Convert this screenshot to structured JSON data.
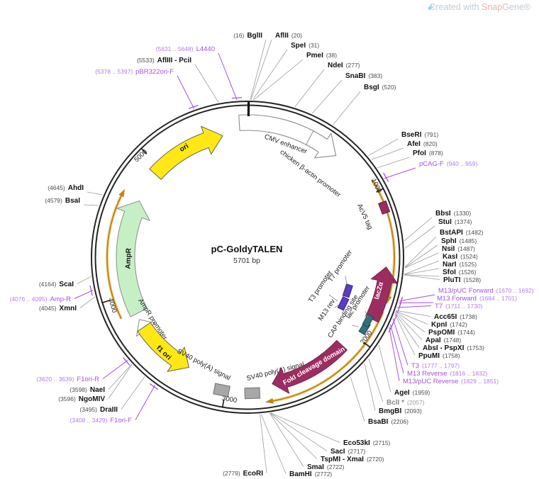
{
  "header": {
    "prefix": "Created with ",
    "snap": "Snap",
    "gene": "Gene®"
  },
  "plasmid": {
    "name": "pC-GoldyTALEN",
    "size_label": "5701 bp",
    "length_bp": 5701
  },
  "colors": {
    "ring": "#262626",
    "enzyme_line": "#9c9c9c",
    "enzyme_name": "#111111",
    "enzyme_pos": "#4d4d4d",
    "dim_enzyme": "#8a8a8a",
    "primer": "#a450e6",
    "gold": "#c08415",
    "gold_halo": "#f2dfae",
    "maroon": "#9c2d61",
    "yellow": "#ffe816",
    "green": "#c6efc6",
    "teal": "#33707e",
    "purple_box": "#5b3cc4",
    "gray_box": "#a8a8a8",
    "white": "#ffffff"
  },
  "ticks": [
    {
      "label": "1000",
      "bp": 1000
    },
    {
      "label": "2000",
      "bp": 2000
    },
    {
      "label": "3000",
      "bp": 3000
    },
    {
      "label": "4000",
      "bp": 4000
    },
    {
      "label": "5000",
      "bp": 5000
    }
  ],
  "sites": [
    {
      "name": "BglII",
      "pos": "(16)",
      "bp": 16,
      "kind": "enzyme",
      "fmt": "pos-first"
    },
    {
      "name": "AflII",
      "pos": "(20)",
      "bp": 20,
      "kind": "enzyme",
      "fmt": "name-first"
    },
    {
      "name": "SpeI",
      "pos": "(31)",
      "bp": 31,
      "kind": "enzyme",
      "fmt": "name-first"
    },
    {
      "name": "PmeI",
      "pos": "(38)",
      "bp": 38,
      "kind": "enzyme",
      "fmt": "name-first"
    },
    {
      "name": "NdeI",
      "pos": "(277)",
      "bp": 277,
      "kind": "enzyme",
      "fmt": "name-first"
    },
    {
      "name": "SnaBI",
      "pos": "(383)",
      "bp": 383,
      "kind": "enzyme",
      "fmt": "name-first"
    },
    {
      "name": "BsgI",
      "pos": "(520)",
      "bp": 520,
      "kind": "enzyme",
      "fmt": "name-first"
    },
    {
      "name": "BseRI",
      "pos": "(791)",
      "bp": 791,
      "kind": "enzyme",
      "fmt": "name-first"
    },
    {
      "name": "AfeI",
      "pos": "(820)",
      "bp": 820,
      "kind": "enzyme",
      "fmt": "name-first"
    },
    {
      "name": "PfoI",
      "pos": "(878)",
      "bp": 878,
      "kind": "enzyme",
      "fmt": "name-first"
    },
    {
      "name": "pCAG-F",
      "pos": "(940 .. 959)",
      "bp": 950,
      "kind": "primer",
      "fmt": "name-first"
    },
    {
      "name": "BbsI",
      "pos": "(1330)",
      "bp": 1330,
      "kind": "enzyme",
      "fmt": "name-first"
    },
    {
      "name": "StuI",
      "pos": "(1374)",
      "bp": 1374,
      "kind": "enzyme",
      "fmt": "name-first"
    },
    {
      "name": "BstAPI",
      "pos": "(1482)",
      "bp": 1482,
      "kind": "enzyme",
      "fmt": "name-first"
    },
    {
      "name": "SphI",
      "pos": "(1485)",
      "bp": 1485,
      "kind": "enzyme",
      "fmt": "name-first"
    },
    {
      "name": "NsiI",
      "pos": "(1487)",
      "bp": 1487,
      "kind": "enzyme",
      "fmt": "name-first"
    },
    {
      "name": "KasI",
      "pos": "(1524)",
      "bp": 1524,
      "kind": "enzyme",
      "fmt": "name-first"
    },
    {
      "name": "NarI",
      "pos": "(1525)",
      "bp": 1525,
      "kind": "enzyme",
      "fmt": "name-first"
    },
    {
      "name": "SfoI",
      "pos": "(1526)",
      "bp": 1526,
      "kind": "enzyme",
      "fmt": "name-first"
    },
    {
      "name": "PluTI",
      "pos": "(1528)",
      "bp": 1528,
      "kind": "enzyme",
      "fmt": "name-first"
    },
    {
      "name": "M13/pUC Forward",
      "pos": "(1670 .. 1692)",
      "bp": 1681,
      "kind": "primer",
      "fmt": "name-first"
    },
    {
      "name": "M13 Forward",
      "pos": "(1684 .. 1701)",
      "bp": 1692,
      "kind": "primer",
      "fmt": "name-first"
    },
    {
      "name": "T7",
      "pos": "(1711 .. 1730)",
      "bp": 1720,
      "kind": "primer",
      "fmt": "name-first"
    },
    {
      "name": "Acc65I",
      "pos": "(1738)",
      "bp": 1738,
      "kind": "enzyme",
      "fmt": "name-first"
    },
    {
      "name": "KpnI",
      "pos": "(1742)",
      "bp": 1742,
      "kind": "enzyme",
      "fmt": "name-first"
    },
    {
      "name": "PspOMI",
      "pos": "(1744)",
      "bp": 1744,
      "kind": "enzyme",
      "fmt": "name-first"
    },
    {
      "name": "ApaI",
      "pos": "(1748)",
      "bp": 1748,
      "kind": "enzyme",
      "fmt": "name-first"
    },
    {
      "name": "AbsI - PspXI",
      "pos": "(1753)",
      "bp": 1753,
      "kind": "enzyme",
      "fmt": "name-first"
    },
    {
      "name": "PpuMI",
      "pos": "(1758)",
      "bp": 1758,
      "kind": "enzyme",
      "fmt": "name-first"
    },
    {
      "name": "T3",
      "pos": "(1777 .. 1797)",
      "bp": 1787,
      "kind": "primer",
      "fmt": "name-first"
    },
    {
      "name": "M13 Reverse",
      "pos": "(1816 .. 1832)",
      "bp": 1824,
      "kind": "primer",
      "fmt": "name-first"
    },
    {
      "name": "M13/pUC Reverse",
      "pos": "(1829 .. 1851)",
      "bp": 1840,
      "kind": "primer",
      "fmt": "name-first"
    },
    {
      "name": "AgeI",
      "pos": "(1959)",
      "bp": 1959,
      "kind": "enzyme",
      "fmt": "name-first"
    },
    {
      "name": "BclI *",
      "pos": "(2057)",
      "bp": 2057,
      "kind": "enzyme-dim",
      "fmt": "name-first"
    },
    {
      "name": "BmgBI",
      "pos": "(2093)",
      "bp": 2093,
      "kind": "enzyme",
      "fmt": "name-first"
    },
    {
      "name": "BsaBI",
      "pos": "(2206)",
      "bp": 2206,
      "kind": "enzyme",
      "fmt": "name-first"
    },
    {
      "name": "Eco53kI",
      "pos": "(2715)",
      "bp": 2715,
      "kind": "enzyme",
      "fmt": "name-first"
    },
    {
      "name": "SacI",
      "pos": "(2717)",
      "bp": 2717,
      "kind": "enzyme",
      "fmt": "name-first"
    },
    {
      "name": "TspMI - XmaI",
      "pos": "(2720)",
      "bp": 2720,
      "kind": "enzyme",
      "fmt": "name-first"
    },
    {
      "name": "SmaI",
      "pos": "(2722)",
      "bp": 2722,
      "kind": "enzyme",
      "fmt": "name-first"
    },
    {
      "name": "BamHI",
      "pos": "(2772)",
      "bp": 2772,
      "kind": "enzyme",
      "fmt": "name-first"
    },
    {
      "name": "EcoRI",
      "pos": "(2779)",
      "bp": 2779,
      "kind": "enzyme",
      "fmt": "pos-first"
    },
    {
      "name": "F1ori-F",
      "pos": "(3408 .. 3429)",
      "bp": 3418,
      "kind": "primer",
      "fmt": "pos-first"
    },
    {
      "name": "DraIII",
      "pos": "(3495)",
      "bp": 3495,
      "kind": "enzyme",
      "fmt": "pos-first"
    },
    {
      "name": "NgoMIV",
      "pos": "(3596)",
      "bp": 3596,
      "kind": "enzyme",
      "fmt": "pos-first"
    },
    {
      "name": "NaeI",
      "pos": "(3598)",
      "bp": 3598,
      "kind": "enzyme",
      "fmt": "pos-first"
    },
    {
      "name": "F1ori-R",
      "pos": "(3620 .. 3639)",
      "bp": 3630,
      "kind": "primer",
      "fmt": "pos-first"
    },
    {
      "name": "XmnI",
      "pos": "(4045)",
      "bp": 4045,
      "kind": "enzyme",
      "fmt": "pos-first"
    },
    {
      "name": "Amp-R",
      "pos": "(4076 .. 4095)",
      "bp": 4085,
      "kind": "primer",
      "fmt": "pos-first"
    },
    {
      "name": "ScaI",
      "pos": "(4164)",
      "bp": 4164,
      "kind": "enzyme",
      "fmt": "pos-first"
    },
    {
      "name": "BsaI",
      "pos": "(4579)",
      "bp": 4579,
      "kind": "enzyme",
      "fmt": "pos-first"
    },
    {
      "name": "AhdI",
      "pos": "(4645)",
      "bp": 4645,
      "kind": "enzyme",
      "fmt": "pos-first"
    },
    {
      "name": "pBR322ori-F",
      "pos": "(5378 .. 5397)",
      "bp": 5388,
      "kind": "primer",
      "fmt": "pos-first"
    },
    {
      "name": "AflIII - PciI",
      "pos": "(5533)",
      "bp": 5533,
      "kind": "enzyme",
      "fmt": "pos-first"
    },
    {
      "name": "L4440",
      "pos": "(5631 .. 5648)",
      "bp": 5640,
      "kind": "primer",
      "fmt": "pos-first"
    }
  ],
  "features": [
    {
      "id": "cmv_arrow",
      "labels": [
        "CMV enhancer",
        "chicken β-actin promoter"
      ],
      "kind": "promoter-arrow",
      "color": "#ffffff"
    },
    {
      "id": "ori",
      "label": "ori",
      "kind": "origin",
      "color": "#ffe816"
    },
    {
      "id": "ampr",
      "label": "AmpR",
      "kind": "cds",
      "color": "#c6efc6"
    },
    {
      "id": "ampr_prom",
      "label": "AmpR promoter",
      "kind": "promoter",
      "color": "#ffffff"
    },
    {
      "id": "f1ori",
      "label": "f1 ori",
      "kind": "origin",
      "color": "#ffe816"
    },
    {
      "id": "sv40_a",
      "label": "SV40 poly(A) signal",
      "kind": "polyA-signal",
      "color": "#a8a8a8"
    },
    {
      "id": "sv40_b",
      "label": "SV40 poly(A) signal",
      "kind": "polyA-signal",
      "color": "#a8a8a8"
    },
    {
      "id": "foki",
      "label": "FokI cleavage domain",
      "kind": "cds",
      "color": "#9c2d61"
    },
    {
      "id": "lacz",
      "label": "lacZα",
      "kind": "cds",
      "color": "#9c2d61"
    },
    {
      "id": "acv5",
      "label": "AcV5 tag",
      "kind": "tag",
      "color": "#9c2d61"
    },
    {
      "id": "t7prom",
      "label": "T7 promoter",
      "kind": "promoter",
      "color": "#5b3cc4"
    },
    {
      "id": "t3prom",
      "label": "T3 promoter",
      "kind": "promoter",
      "color": "#5b3cc4"
    },
    {
      "id": "m13rev",
      "label": "M13 rev",
      "kind": "primer-site",
      "color": "#5b3cc4"
    },
    {
      "id": "cap",
      "label": "CAP binding site",
      "kind": "protein-bind",
      "color": "#33707e"
    },
    {
      "id": "lacprom",
      "label": "lac promoter",
      "kind": "promoter",
      "color": "#33707e"
    }
  ]
}
